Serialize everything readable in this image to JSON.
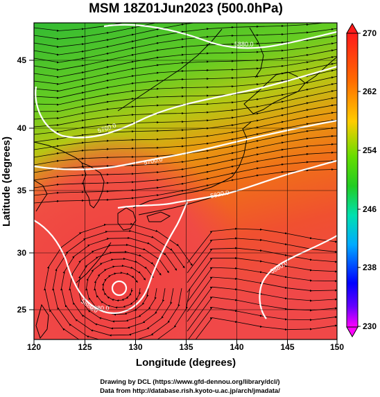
{
  "title": "MSM 18Z01Jun2023 (500.0hPa)",
  "xlabel": "Longitude (degrees)",
  "ylabel": "Latitude  (degrees)",
  "x_ticks": [
    "120",
    "125",
    "130",
    "135",
    "140",
    "145",
    "150"
  ],
  "y_ticks": [
    "25",
    "30",
    "35",
    "40",
    "45"
  ],
  "colorbar": {
    "labels": [
      "270",
      "262",
      "254",
      "246",
      "238",
      "230"
    ],
    "colors": [
      "#ff1a1a",
      "#ff8c00",
      "#ffee00",
      "#22cc22",
      "#00e0b0",
      "#00aaff",
      "#0000ff",
      "#ff00ff"
    ]
  },
  "contour_labels": [
    "5880.0",
    "5760.0",
    "5700.0",
    "5820.0",
    "5880.0",
    "5880.0",
    "5880.0"
  ],
  "credits": {
    "line1": "Drawing by DCL (https://www.gfd-dennou.org/library/dcl/)",
    "line2": "Data from http://database.rish.kyoto-u.ac.jp/arch/jmadata/"
  }
}
